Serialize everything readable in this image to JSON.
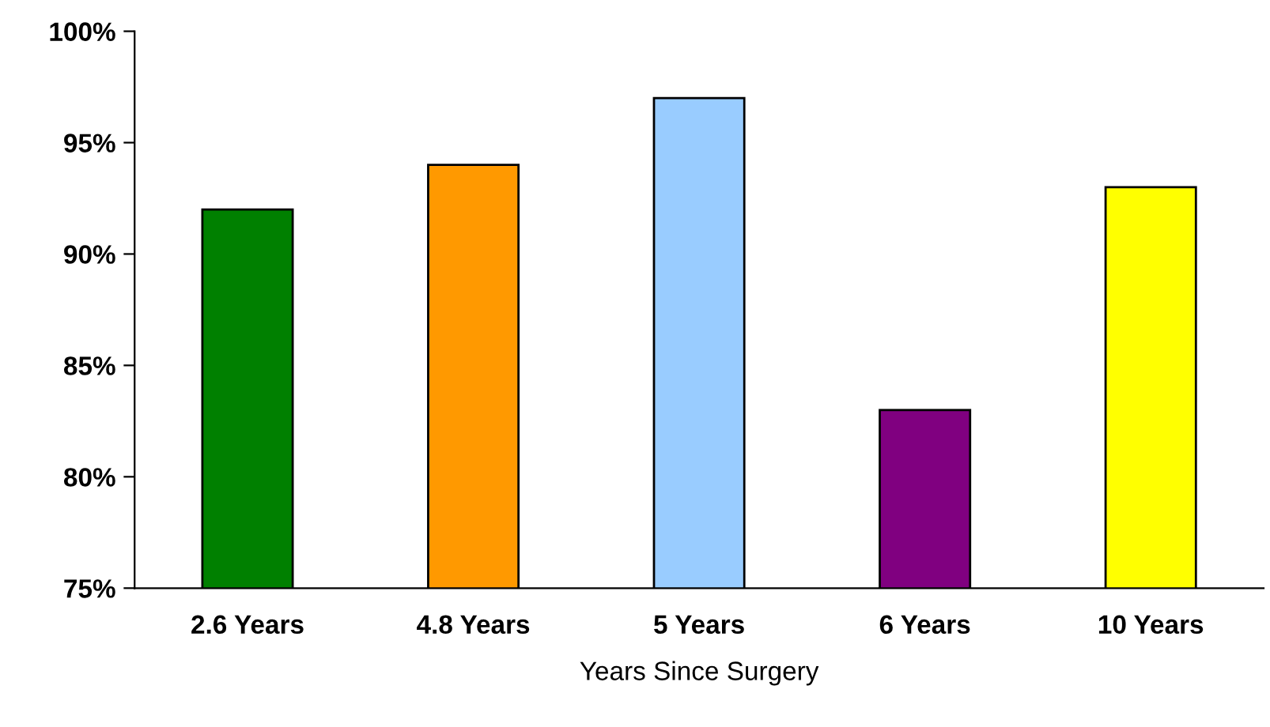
{
  "chart_data": {
    "type": "bar",
    "xlabel": "Years Since Surgery",
    "categories": [
      "2.6 Years",
      "4.8 Years",
      "5 Years",
      "6 Years",
      "10 Years"
    ],
    "values": [
      92,
      94,
      97,
      83,
      93
    ],
    "colors": [
      "#008000",
      "#ff9900",
      "#99ccff",
      "#800080",
      "#ffff00"
    ],
    "ylim": [
      75,
      100
    ],
    "yticks": [
      {
        "value": 75,
        "label": "75%"
      },
      {
        "value": 80,
        "label": "80%"
      },
      {
        "value": 85,
        "label": "85%"
      },
      {
        "value": 90,
        "label": "90%"
      },
      {
        "value": 95,
        "label": "95%"
      },
      {
        "value": 100,
        "label": "100%"
      }
    ],
    "grid": false,
    "legend": false
  }
}
